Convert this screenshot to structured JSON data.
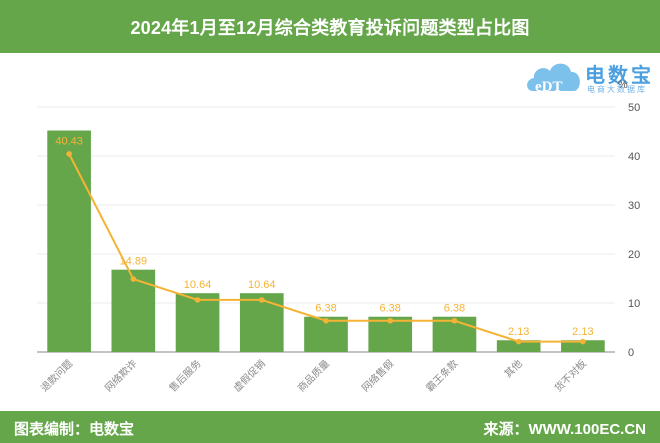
{
  "header": {
    "title": "2024年1月至12月综合类教育投诉问题类型占比图"
  },
  "logo": {
    "brand": "电数宝",
    "sub": "电商大数据库",
    "mark": "eDT"
  },
  "footer": {
    "left": "图表编制：电数宝",
    "right": "来源：WWW.100EC.CN"
  },
  "colors": {
    "header_bg": "#66a64b",
    "bar": "#66a64b",
    "line": "#f5b335",
    "label": "#f5b335",
    "grid": "#ebebeb",
    "axis_text": "#555555",
    "cat_text": "#8a8a8a"
  },
  "axis": {
    "unit": "%"
  },
  "chart_data": {
    "type": "bar",
    "title": "2024年1月至12月综合类教育投诉问题类型占比图",
    "xlabel": "",
    "ylabel": "%",
    "ylim": [
      0,
      50
    ],
    "yticks": [
      0,
      10,
      20,
      30,
      40,
      50
    ],
    "grid": true,
    "legend": "none",
    "categories": [
      "退款问题",
      "网络欺诈",
      "售后服务",
      "虚假促销",
      "商品质量",
      "网络售假",
      "霸王条款",
      "其他",
      "货不对板"
    ],
    "series": [
      {
        "name": "bars",
        "type": "bar",
        "values": [
          45.2,
          16.8,
          12.0,
          12.0,
          7.2,
          7.2,
          7.2,
          2.4,
          2.4
        ]
      },
      {
        "name": "占比(%)",
        "type": "line",
        "values": [
          40.43,
          14.89,
          10.64,
          10.64,
          6.38,
          6.38,
          6.38,
          2.13,
          2.13
        ],
        "labels": [
          "40.43",
          "14.89",
          "10.64",
          "10.64",
          "6.38",
          "6.38",
          "6.38",
          "2.13",
          "2.13"
        ]
      }
    ]
  }
}
